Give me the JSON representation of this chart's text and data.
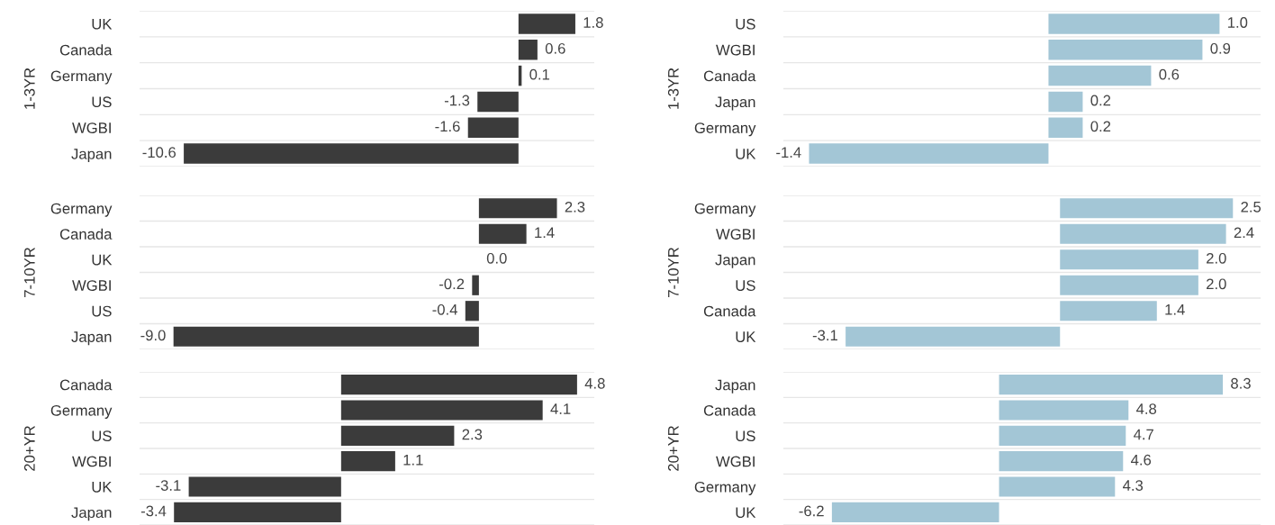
{
  "chart_data": [
    {
      "type": "bar",
      "orientation": "horizontal",
      "ylabel": "1-3YR",
      "categories": [
        "UK",
        "Canada",
        "Germany",
        "US",
        "WGBI",
        "Japan"
      ],
      "values": [
        1.8,
        0.6,
        0.1,
        -1.3,
        -1.6,
        -10.6
      ],
      "value_labels": [
        "1.8",
        "0.6",
        "0.1",
        "-1.3",
        "-1.6",
        "-10.6"
      ],
      "color": "#3b3b3b",
      "xlim": [
        -12.0,
        2.4
      ],
      "grid": "y",
      "tick_labels": "y"
    },
    {
      "type": "bar",
      "orientation": "horizontal",
      "ylabel": "1-3YR",
      "categories": [
        "US",
        "WGBI",
        "Canada",
        "Japan",
        "Germany",
        "UK"
      ],
      "values": [
        1.0,
        0.9,
        0.6,
        0.2,
        0.2,
        -1.4
      ],
      "value_labels": [
        "1.0",
        "0.9",
        "0.6",
        "0.2",
        "0.2",
        "-1.4"
      ],
      "color": "#a3c6d6",
      "xlim": [
        -1.55,
        1.24
      ],
      "grid": "y",
      "tick_labels": "y"
    },
    {
      "type": "bar",
      "orientation": "horizontal",
      "ylabel": "7-10YR",
      "categories": [
        "Germany",
        "Canada",
        "UK",
        "WGBI",
        "US",
        "Japan"
      ],
      "values": [
        2.3,
        1.4,
        0.0,
        -0.2,
        -0.4,
        -9.0
      ],
      "value_labels": [
        "2.3",
        "1.4",
        "0.0",
        "-0.2",
        "-0.4",
        "-9.0"
      ],
      "color": "#3b3b3b",
      "xlim": [
        -10.0,
        3.4
      ],
      "grid": "y",
      "tick_labels": "y"
    },
    {
      "type": "bar",
      "orientation": "horizontal",
      "ylabel": "7-10YR",
      "categories": [
        "Germany",
        "WGBI",
        "Japan",
        "US",
        "Canada",
        "UK"
      ],
      "values": [
        2.5,
        2.4,
        2.0,
        2.0,
        1.4,
        -3.1
      ],
      "value_labels": [
        "2.5",
        "2.4",
        "2.0",
        "2.0",
        "1.4",
        "-3.1"
      ],
      "color": "#a3c6d6",
      "xlim": [
        -4.0,
        2.9
      ],
      "grid": "y",
      "tick_labels": "y"
    },
    {
      "type": "bar",
      "orientation": "horizontal",
      "ylabel": "20+YR",
      "categories": [
        "Canada",
        "Germany",
        "US",
        "WGBI",
        "UK",
        "Japan"
      ],
      "values": [
        4.8,
        4.1,
        2.3,
        1.1,
        -3.1,
        -3.4
      ],
      "value_labels": [
        "4.8",
        "4.1",
        "2.3",
        "1.1",
        "-3.1",
        "-3.4"
      ],
      "color": "#3b3b3b",
      "xlim": [
        -4.1,
        5.15
      ],
      "grid": "y",
      "tick_labels": "y"
    },
    {
      "type": "bar",
      "orientation": "horizontal",
      "ylabel": "20+YR",
      "categories": [
        "Japan",
        "Canada",
        "US",
        "WGBI",
        "Germany",
        "UK"
      ],
      "values": [
        8.3,
        4.8,
        4.7,
        4.6,
        4.3,
        -6.2
      ],
      "value_labels": [
        "8.3",
        "4.8",
        "4.7",
        "4.6",
        "4.3",
        "-6.2"
      ],
      "color": "#a3c6d6",
      "xlim": [
        -8.0,
        9.7
      ],
      "grid": "y",
      "tick_labels": "y"
    }
  ]
}
